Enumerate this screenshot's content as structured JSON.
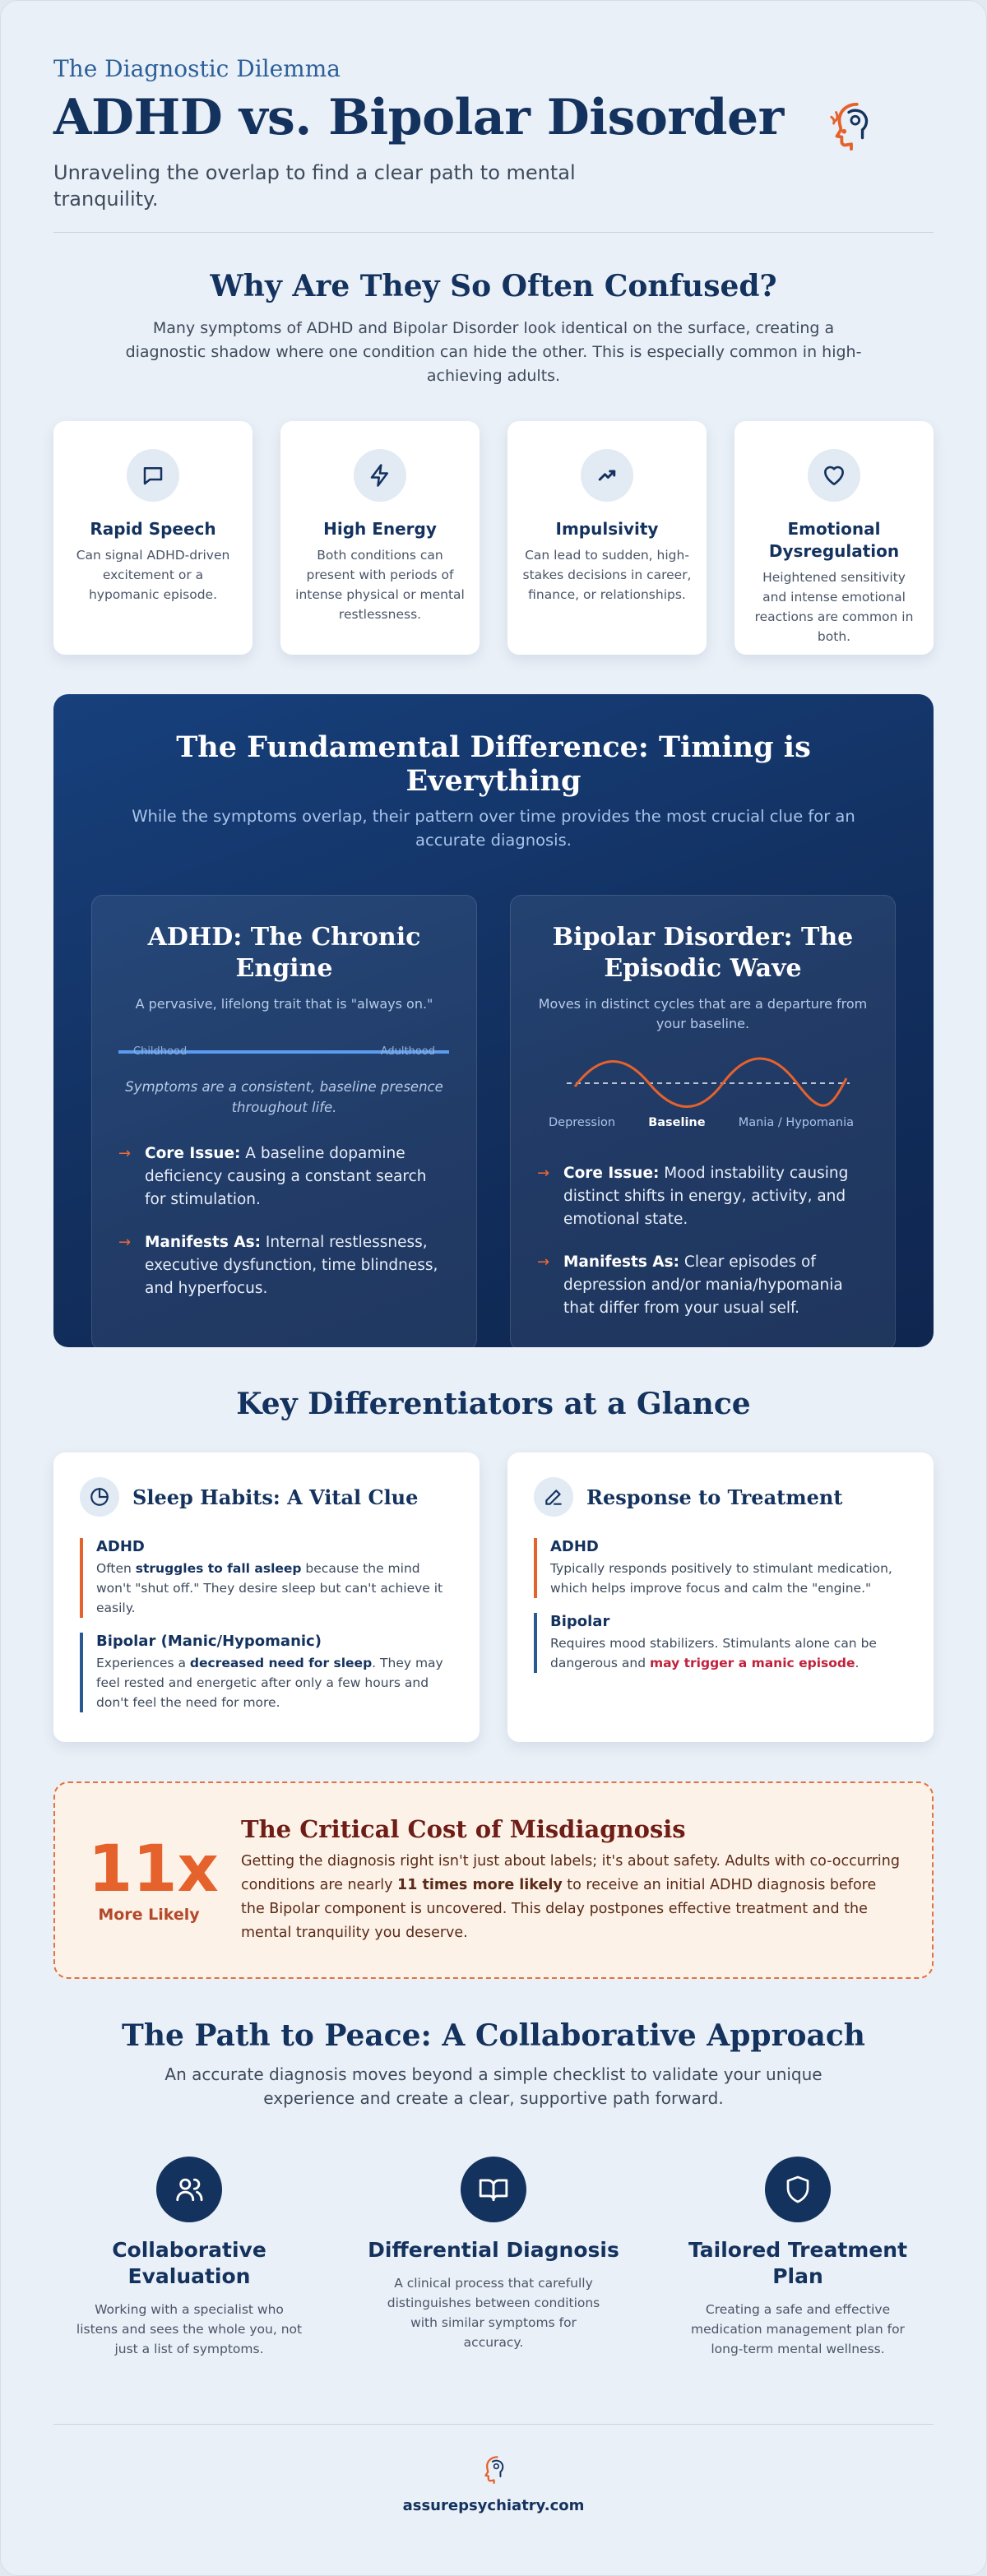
{
  "header": {
    "eyebrow": "The Diagnostic Dilemma",
    "title": "ADHD vs. Bipolar Disorder",
    "subtitle": "Unraveling the overlap to find a clear path to mental tranquility."
  },
  "why": {
    "title": "Why Are They So Often Confused?",
    "intro": "Many symptoms of ADHD and Bipolar Disorder look identical on the surface, creating a diagnostic shadow where one condition can hide the other. This is especially common in high-achieving adults.",
    "cards": [
      {
        "icon": "speech-bubble-icon",
        "title": "Rapid Speech",
        "text": "Can signal ADHD-driven excitement or a hypomanic episode."
      },
      {
        "icon": "lightning-icon",
        "title": "High Energy",
        "text": "Both conditions can present with periods of intense physical or mental restlessness."
      },
      {
        "icon": "trend-up-icon",
        "title": "Impulsivity",
        "text": "Can lead to sudden, high-stakes decisions in career, finance, or relationships."
      },
      {
        "icon": "heart-icon",
        "title": "Emotional Dysregulation",
        "text": "Heightened sensitivity and intense emotional reactions are common in both."
      }
    ]
  },
  "timing": {
    "title": "The Fundamental Difference: Timing is Everything",
    "intro": "While the symptoms overlap, their pattern over time provides the most crucial clue for an accurate diagnosis.",
    "adhd": {
      "title": "ADHD: The Chronic Engine",
      "subtitle": "A pervasive, lifelong trait that is \"always on.\"",
      "line_start": "Childhood",
      "line_end": "Adulthood",
      "note": "Symptoms are a consistent, baseline presence throughout life.",
      "points": [
        {
          "label": "Core Issue:",
          "text": " A baseline dopamine deficiency causing a constant search for stimulation."
        },
        {
          "label": "Manifests As:",
          "text": " Internal restlessness, executive dysfunction, time blindness, and hyperfocus."
        }
      ]
    },
    "bipolar": {
      "title": "Bipolar Disorder: The Episodic Wave",
      "subtitle": "Moves in distinct cycles that are a departure from your baseline.",
      "wave_labels": [
        "Depression",
        "Baseline",
        "Mania / Hypomania"
      ],
      "points": [
        {
          "label": "Core Issue:",
          "text": " Mood instability causing distinct shifts in energy, activity, and emotional state."
        },
        {
          "label": "Manifests As:",
          "text": " Clear episodes of depression and/or mania/hypomania that differ from your usual self."
        }
      ]
    },
    "colors": {
      "arrow": "#f06a35",
      "wave": "#e5622d",
      "line": "#5b9bf0"
    }
  },
  "diff": {
    "title": "Key Differentiators at a Glance",
    "sleep": {
      "icon": "pie-clock-icon",
      "title": "Sleep Habits: A Vital Clue",
      "adhd_label": "ADHD",
      "adhd_pre": "Often ",
      "adhd_bold": "struggles to fall asleep",
      "adhd_post": " because the mind won't \"shut off.\" They desire sleep but can't achieve it easily.",
      "bip_label": "Bipolar (Manic/Hypomanic)",
      "bip_pre": "Experiences a ",
      "bip_bold": "decreased need for sleep",
      "bip_post": ". They may feel rested and energetic after only a few hours and don't feel the need for more."
    },
    "treatment": {
      "icon": "pencil-icon",
      "title": "Response to Treatment",
      "adhd_label": "ADHD",
      "adhd_text": "Typically responds positively to stimulant medication, which helps improve focus and calm the \"engine.\"",
      "bip_label": "Bipolar",
      "bip_pre": "Requires mood stabilizers. Stimulants alone can be dangerous and ",
      "bip_danger": "may trigger a manic episode",
      "bip_post": "."
    }
  },
  "cost": {
    "stat": "11x",
    "stat_label": "More Likely",
    "title": "The Critical Cost of Misdiagnosis",
    "pre": "Getting the diagnosis right isn't just about labels; it's about safety. Adults with co-occurring conditions are nearly ",
    "bold": "11 times more likely",
    "post": " to receive an initial ADHD diagnosis before the Bipolar component is uncovered. This delay postpones effective treatment and the mental tranquility you deserve."
  },
  "path": {
    "title": "The Path to Peace: A Collaborative Approach",
    "intro": "An accurate diagnosis moves beyond a simple checklist to validate your unique experience and create a clear, supportive path forward.",
    "steps": [
      {
        "icon": "people-icon",
        "title": "Collaborative Evaluation",
        "text": "Working with a specialist who listens and sees the whole you, not just a list of symptoms."
      },
      {
        "icon": "open-book-icon",
        "title": "Differential Diagnosis",
        "text": "A clinical process that carefully distinguishes between conditions with similar symptoms for accuracy."
      },
      {
        "icon": "shield-icon",
        "title": "Tailored Treatment Plan",
        "text": "Creating a safe and effective medication management plan for long-term mental wellness."
      }
    ]
  },
  "footer": {
    "site": "assurepsychiatry.com"
  }
}
